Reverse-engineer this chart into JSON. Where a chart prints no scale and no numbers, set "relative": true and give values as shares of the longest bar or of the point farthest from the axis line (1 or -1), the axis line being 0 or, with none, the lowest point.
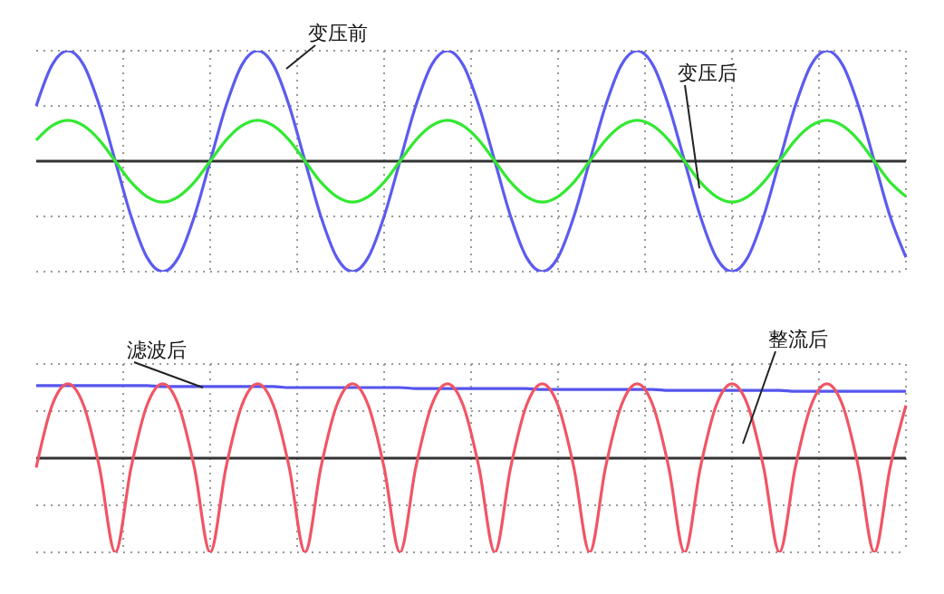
{
  "chart_data": [
    {
      "type": "line",
      "relative": true,
      "grid": true,
      "marker": "none",
      "categories": [
        null,
        null,
        null,
        null,
        null,
        null,
        null,
        null,
        null,
        null,
        null,
        null,
        null,
        null,
        null,
        null,
        null,
        null,
        null,
        null,
        null,
        null,
        null,
        null,
        null,
        null,
        null,
        null,
        null,
        null,
        null,
        null,
        null,
        null,
        null,
        null,
        null,
        null,
        null,
        null,
        null,
        null,
        null,
        null,
        null,
        null,
        null,
        null,
        null,
        null,
        null,
        null,
        null,
        null,
        null,
        null
      ],
      "series": [
        {
          "name": "变压前",
          "color": "#5b5bf0",
          "values": [
            0.5,
            0.87,
            1,
            0.87,
            0.5,
            0,
            -0.5,
            -0.87,
            -1,
            -0.87,
            -0.5,
            0,
            0.5,
            0.87,
            1,
            0.87,
            0.5,
            0,
            -0.5,
            -0.87,
            -1,
            -0.87,
            -0.5,
            0,
            0.5,
            0.87,
            1,
            0.87,
            0.5,
            0,
            -0.5,
            -0.87,
            -1,
            -0.87,
            -0.5,
            0,
            0.5,
            0.87,
            1,
            0.87,
            0.5,
            0,
            -0.5,
            -0.87,
            -1,
            -0.87,
            -0.5,
            0,
            0.5,
            0.87,
            1,
            0.87,
            0.5,
            0,
            -0.5,
            -0.87
          ]
        },
        {
          "name": "变压后",
          "color": "#33e833",
          "values": [
            0.19,
            0.32,
            0.37,
            0.32,
            0.19,
            0,
            -0.19,
            -0.32,
            -0.37,
            -0.32,
            -0.19,
            0,
            0.19,
            0.32,
            0.37,
            0.32,
            0.19,
            0,
            -0.19,
            -0.32,
            -0.37,
            -0.32,
            -0.19,
            0,
            0.19,
            0.32,
            0.37,
            0.32,
            0.19,
            0,
            -0.19,
            -0.32,
            -0.37,
            -0.32,
            -0.19,
            0,
            0.19,
            0.32,
            0.37,
            0.32,
            0.19,
            0,
            -0.19,
            -0.32,
            -0.37,
            -0.32,
            -0.19,
            0,
            0.19,
            0.32,
            0.37,
            0.32,
            0.19,
            0,
            -0.19,
            -0.32
          ]
        }
      ]
    },
    {
      "type": "line",
      "relative": true,
      "grid": true,
      "marker": "none",
      "categories": [
        null,
        null,
        null,
        null,
        null,
        null,
        null,
        null,
        null,
        null,
        null,
        null,
        null,
        null,
        null,
        null,
        null,
        null,
        null,
        null,
        null,
        null,
        null,
        null,
        null,
        null,
        null,
        null,
        null,
        null,
        null,
        null,
        null,
        null,
        null,
        null,
        null,
        null,
        null,
        null,
        null,
        null,
        null,
        null,
        null,
        null,
        null,
        null,
        null,
        null,
        null,
        null,
        null,
        null,
        null,
        null
      ],
      "series": [
        {
          "name": "滤波后",
          "color": "#5555ee",
          "values": [
            0.77,
            0.77,
            0.77,
            0.77,
            0.77,
            0.77,
            0.77,
            0.77,
            0.76,
            0.76,
            0.76,
            0.76,
            0.76,
            0.76,
            0.76,
            0.76,
            0.75,
            0.75,
            0.75,
            0.75,
            0.75,
            0.75,
            0.75,
            0.75,
            0.74,
            0.74,
            0.74,
            0.74,
            0.74,
            0.74,
            0.74,
            0.74,
            0.73,
            0.73,
            0.73,
            0.73,
            0.73,
            0.73,
            0.73,
            0.73,
            0.72,
            0.72,
            0.72,
            0.72,
            0.72,
            0.72,
            0.72,
            0.72,
            0.71,
            0.71,
            0.71,
            0.71,
            0.71,
            0.71,
            0.71,
            0.71
          ]
        },
        {
          "name": "整流后",
          "color": "#f05565",
          "values": [
            -0.1,
            0.56,
            0.79,
            0.56,
            -0.1,
            -1,
            -0.1,
            0.56,
            0.79,
            0.56,
            -0.1,
            -1,
            -0.1,
            0.56,
            0.79,
            0.56,
            -0.1,
            -1,
            -0.1,
            0.56,
            0.79,
            0.56,
            -0.1,
            -1,
            -0.1,
            0.56,
            0.79,
            0.56,
            -0.1,
            -1,
            -0.1,
            0.56,
            0.79,
            0.56,
            -0.1,
            -1,
            -0.1,
            0.56,
            0.79,
            0.56,
            -0.1,
            -1,
            -0.1,
            0.56,
            0.79,
            0.56,
            -0.1,
            -1,
            -0.1,
            0.56,
            0.79,
            0.56,
            -0.1,
            -1,
            -0.1,
            0.56
          ]
        }
      ]
    }
  ]
}
